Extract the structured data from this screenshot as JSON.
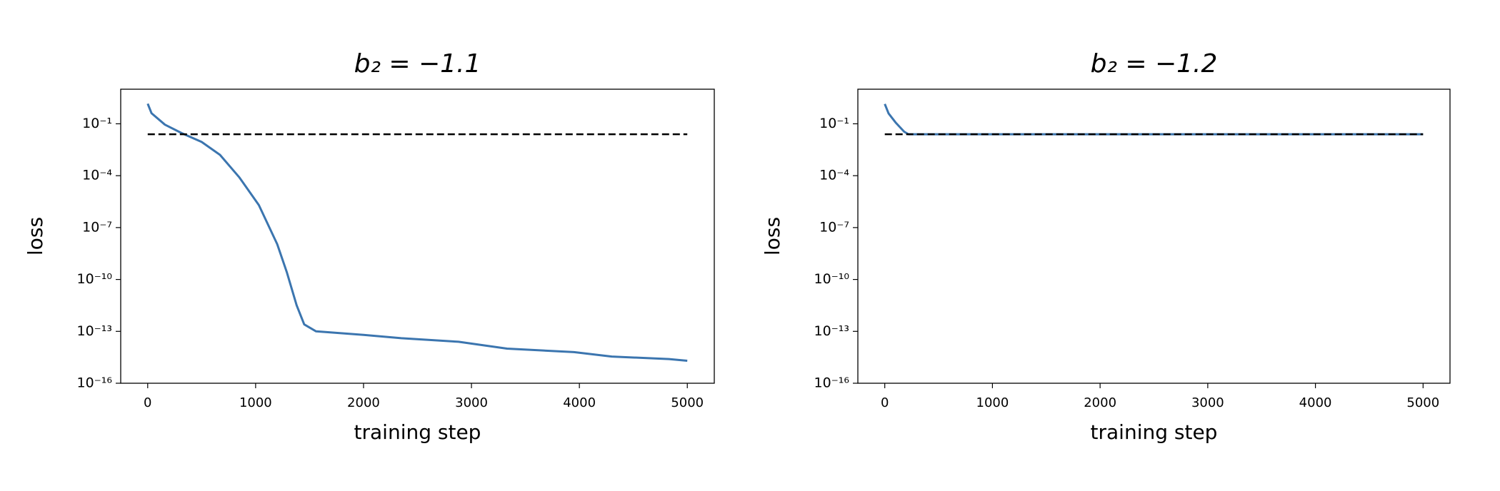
{
  "chart_data": [
    {
      "type": "line",
      "title": "b₂ = −1.1",
      "xlabel": "training step",
      "ylabel": "loss",
      "yscale": "log",
      "xlim": [
        -250,
        5250
      ],
      "ylim": [
        1e-16,
        10
      ],
      "xticks": [
        0,
        1000,
        2000,
        3000,
        4000,
        5000
      ],
      "yticks": [
        {
          "value": 0.1,
          "label": "10⁻¹"
        },
        {
          "value": 0.0001,
          "label": "10⁻⁴"
        },
        {
          "value": 1e-07,
          "label": "10⁻⁷"
        },
        {
          "value": 1e-10,
          "label": "10⁻¹⁰"
        },
        {
          "value": 1e-13,
          "label": "10⁻¹³"
        },
        {
          "value": 1e-16,
          "label": "10⁻¹⁶"
        }
      ],
      "series": [
        {
          "color": "#3b75af",
          "x": [
            0,
            35,
            160,
            320,
            500,
            670,
            850,
            1030,
            1200,
            1290,
            1380,
            1450,
            1560,
            2000,
            2350,
            2880,
            3330,
            3950,
            4300,
            4830,
            5000
          ],
          "values": [
            1.45,
            0.41,
            0.089,
            0.028,
            0.0089,
            0.0016,
            7.9e-05,
            2e-06,
            1.1e-08,
            2.5e-10,
            3.2e-12,
            2.5e-13,
            1e-13,
            6.3e-14,
            4e-14,
            2.5e-14,
            1e-14,
            6.3e-15,
            3.5e-15,
            2.5e-15,
            2e-15
          ]
        },
        {
          "color": "#000000",
          "dash": true,
          "x": [
            0,
            5000
          ],
          "values": [
            0.025,
            0.025
          ]
        }
      ]
    },
    {
      "type": "line",
      "title": "b₂ = −1.2",
      "xlabel": "training step",
      "ylabel": "loss",
      "yscale": "log",
      "xlim": [
        -250,
        5250
      ],
      "ylim": [
        1e-16,
        10
      ],
      "xticks": [
        0,
        1000,
        2000,
        3000,
        4000,
        5000
      ],
      "yticks": [
        {
          "value": 0.1,
          "label": "10⁻¹"
        },
        {
          "value": 0.0001,
          "label": "10⁻⁴"
        },
        {
          "value": 1e-07,
          "label": "10⁻⁷"
        },
        {
          "value": 1e-10,
          "label": "10⁻¹⁰"
        },
        {
          "value": 1e-13,
          "label": "10⁻¹³"
        },
        {
          "value": 1e-16,
          "label": "10⁻¹⁶"
        }
      ],
      "series": [
        {
          "color": "#3b75af",
          "x": [
            0,
            35,
            100,
            180,
            220,
            1000,
            2000,
            3000,
            4000,
            5000
          ],
          "values": [
            1.4,
            0.4,
            0.12,
            0.035,
            0.025,
            0.025,
            0.025,
            0.025,
            0.025,
            0.025
          ]
        },
        {
          "color": "#000000",
          "dash": true,
          "x": [
            0,
            5000
          ],
          "values": [
            0.025,
            0.025
          ]
        }
      ]
    }
  ]
}
